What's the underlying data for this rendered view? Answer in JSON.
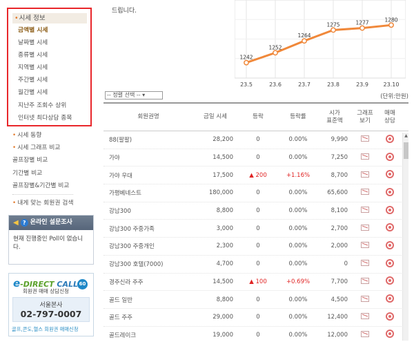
{
  "sidebar": {
    "menu_title": "시세 정보",
    "menu_items": [
      {
        "label": "금액별 시세",
        "active": true
      },
      {
        "label": "날짜별 시세",
        "active": false
      },
      {
        "label": "종류별 시세",
        "active": false
      },
      {
        "label": "지역별 시세",
        "active": false
      },
      {
        "label": "주간별 시세",
        "active": false
      },
      {
        "label": "월간별 시세",
        "active": false
      },
      {
        "label": "지난주 조회수 상위",
        "active": false
      },
      {
        "label": "인터넷 최다상담 종목",
        "active": false
      }
    ],
    "sub_items": [
      "시세 동향",
      "시세 그래프 비교",
      "골프장별 비교",
      "기간별 비교",
      "골프장별&기간별 비교",
      "내게 맞는 회원권 검색"
    ],
    "survey": {
      "title": "온라인 설문조사",
      "text": "현재 진행중인 Poll이 없습니다."
    },
    "direct_call": {
      "logo_e": "e",
      "logo_direct": "-DIRECT",
      "logo_call": "CALL",
      "badge": "60",
      "subtitle": "회원권 매매 상담신청",
      "office_name": "서울본사",
      "office_phone": "02-797-0007",
      "footer": "골프,콘도,헬스 회원권 매매신청"
    }
  },
  "intro_text": "드립니다.",
  "period_select": "-- 정렬 선택 --",
  "unit_label": "(단위:만원)",
  "chart_data": {
    "type": "line",
    "categories": [
      "23.5",
      "23.6",
      "23.7",
      "23.8",
      "23.9",
      "23.10"
    ],
    "values": [
      1242,
      1252,
      1264,
      1275,
      1277,
      1280
    ],
    "ylim": [
      1225,
      1290
    ],
    "grid": true,
    "line_color": "#f0883a",
    "title": "",
    "xlabel": "",
    "ylabel": ""
  },
  "table": {
    "headers": {
      "name": "회원권명",
      "price": "금일 시세",
      "change": "등락",
      "rate": "등락률",
      "tax_line1": "시가",
      "tax_line2": "표준액",
      "graph_line1": "그래프",
      "graph_line2": "보기",
      "trade_line1": "매매",
      "trade_line2": "상담"
    },
    "rows": [
      {
        "name": "88(팔팔)",
        "price": "28,200",
        "change": "0",
        "rate": "0.00%",
        "tax": "9,990",
        "up": false
      },
      {
        "name": "가야",
        "price": "14,500",
        "change": "0",
        "rate": "0.00%",
        "tax": "7,250",
        "up": false
      },
      {
        "name": "가야 우대",
        "price": "17,500",
        "change": "▲ 200",
        "rate": "+1.16%",
        "tax": "8,700",
        "up": true
      },
      {
        "name": "가평베네스트",
        "price": "180,000",
        "change": "0",
        "rate": "0.00%",
        "tax": "65,600",
        "up": false
      },
      {
        "name": "강남300",
        "price": "8,800",
        "change": "0",
        "rate": "0.00%",
        "tax": "8,100",
        "up": false
      },
      {
        "name": "강남300 주중가족",
        "price": "3,000",
        "change": "0",
        "rate": "0.00%",
        "tax": "2,700",
        "up": false
      },
      {
        "name": "강남300 주중개인",
        "price": "2,300",
        "change": "0",
        "rate": "0.00%",
        "tax": "2,000",
        "up": false
      },
      {
        "name": "강남300 호텔(7000)",
        "price": "4,700",
        "change": "0",
        "rate": "0.00%",
        "tax": "0",
        "up": false
      },
      {
        "name": "경주신라 주주",
        "price": "14,500",
        "change": "▲ 100",
        "rate": "+0.69%",
        "tax": "7,700",
        "up": true
      },
      {
        "name": "골드 일반",
        "price": "8,800",
        "change": "0",
        "rate": "0.00%",
        "tax": "4,500",
        "up": false
      },
      {
        "name": "골드 주주",
        "price": "29,000",
        "change": "0",
        "rate": "0.00%",
        "tax": "12,400",
        "up": false
      },
      {
        "name": "골드레이크",
        "price": "19,000",
        "change": "0",
        "rate": "0.00%",
        "tax": "12,000",
        "up": false
      }
    ]
  }
}
